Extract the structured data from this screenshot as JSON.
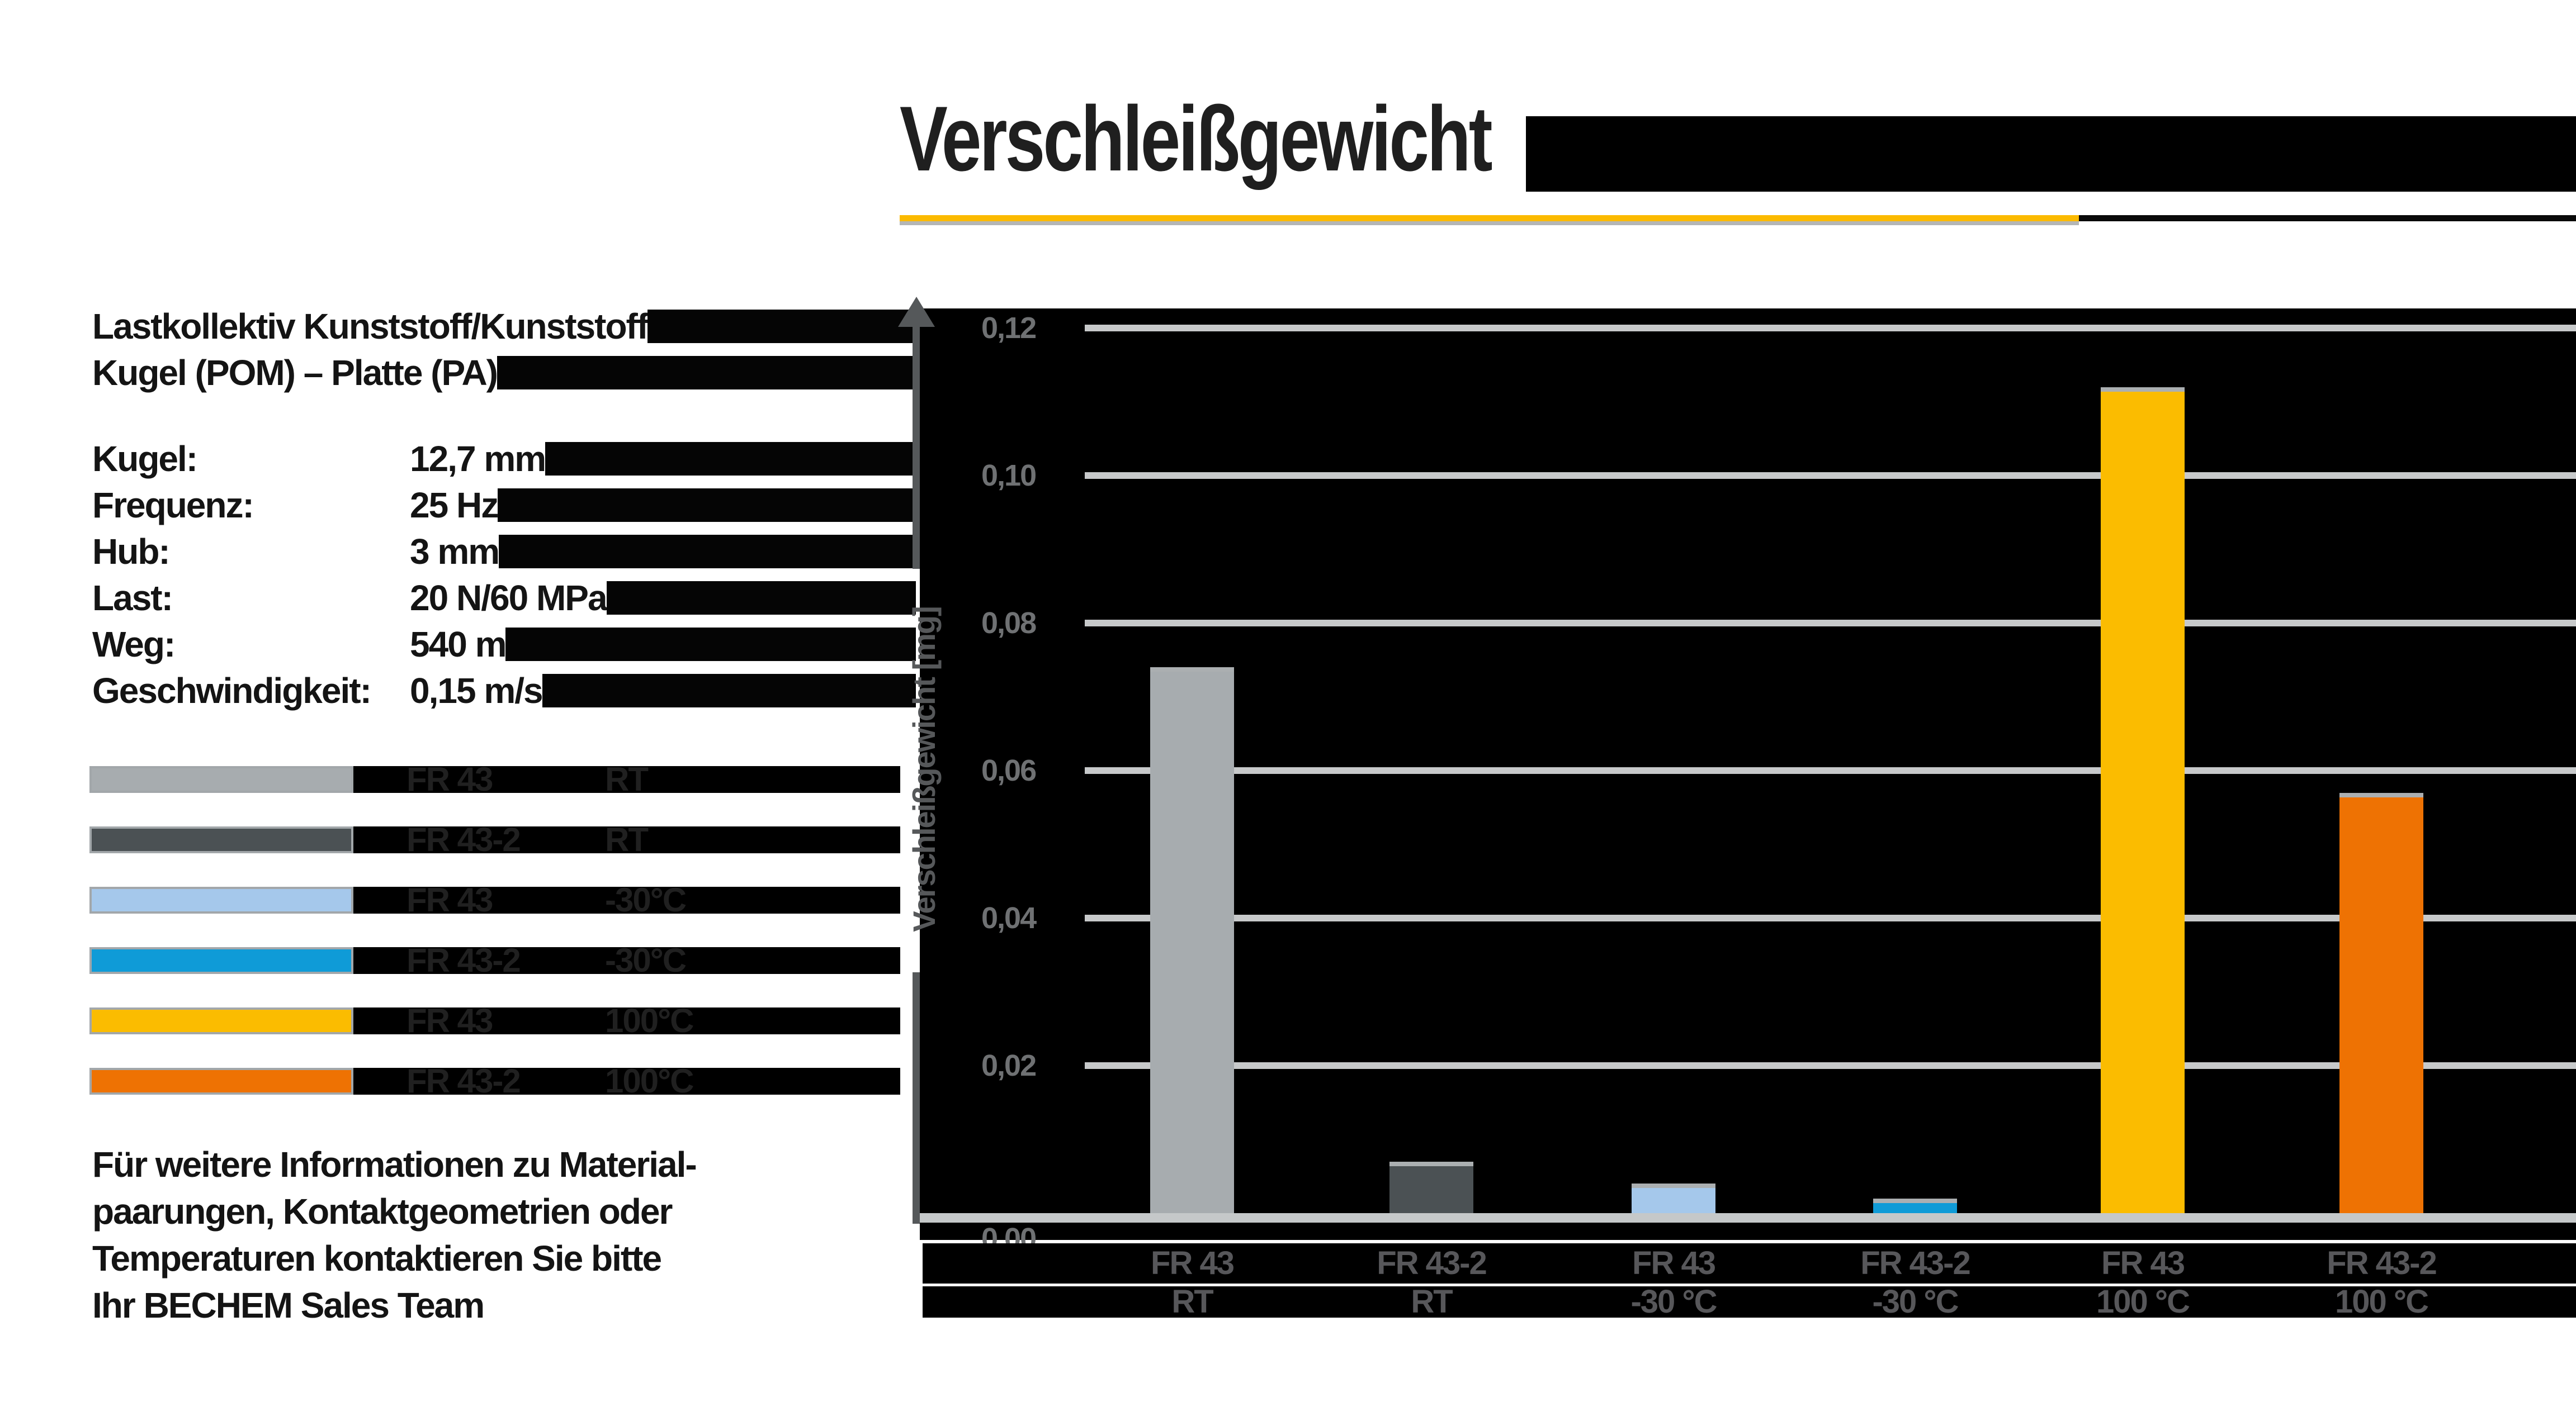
{
  "title": "Verschleißgewicht",
  "info": {
    "heading": [
      "Lastkollektiv Kunststoff/Kunststoff",
      "Kugel (POM) – Platte (PA)"
    ],
    "params": [
      {
        "label": "Kugel:",
        "value": "12,7 mm"
      },
      {
        "label": "Frequenz:",
        "value": "25 Hz"
      },
      {
        "label": "Hub:",
        "value": "3 mm"
      },
      {
        "label": "Last:",
        "value": "20 N/60 MPa"
      },
      {
        "label": "Weg:",
        "value": "540 m"
      },
      {
        "label": "Geschwindigkeit:",
        "value": "0,15 m/s"
      }
    ],
    "footer": [
      "Für weitere Informationen zu Material-",
      "paarungen, Kontaktgeometrien oder",
      "Temperaturen kontaktieren Sie bitte",
      "Ihr BECHEM Sales Team"
    ]
  },
  "legend": [
    {
      "product": "FR 43",
      "temperature": "RT",
      "color": "#a7acaf"
    },
    {
      "product": "FR 43-2",
      "temperature": "RT",
      "color": "#4b5154"
    },
    {
      "product": "FR 43",
      "temperature": "-30°C",
      "color": "#a5c8eb"
    },
    {
      "product": "FR 43-2",
      "temperature": "-30°C",
      "color": "#0f9bd7"
    },
    {
      "product": "FR 43",
      "temperature": "100°C",
      "color": "#fbbc00"
    },
    {
      "product": "FR 43-2",
      "temperature": "100°C",
      "color": "#ee7203"
    }
  ],
  "chart_data": {
    "type": "bar",
    "title": "Verschleißgewicht",
    "xlabel": "",
    "ylabel": "Verschleißgewicht [mg]",
    "ylim": [
      0,
      0.12
    ],
    "ytick_labels": [
      "0,12",
      "0,10",
      "0,08",
      "0,06",
      "0,04",
      "0,02",
      "0,00"
    ],
    "ytick_values": [
      0.12,
      0.1,
      0.08,
      0.06,
      0.04,
      0.02,
      0.0
    ],
    "grid": true,
    "legend_position": "left",
    "plot_background": "#000000",
    "categories": [
      {
        "product": "FR 43",
        "temperature": "RT"
      },
      {
        "product": "FR 43-2",
        "temperature": "RT"
      },
      {
        "product": "FR 43",
        "temperature": "-30 °C"
      },
      {
        "product": "FR 43-2",
        "temperature": "-30 °C"
      },
      {
        "product": "FR 43",
        "temperature": "100 °C"
      },
      {
        "product": "FR 43-2",
        "temperature": "100 °C"
      }
    ],
    "values": [
      0.074,
      0.007,
      0.004,
      0.002,
      0.112,
      0.057
    ],
    "bar_colors": [
      "#a7acaf",
      "#4b5154",
      "#a5c8eb",
      "#0f9bd7",
      "#fbbc00",
      "#ee7203"
    ]
  },
  "colors": {
    "accent_yellow": "#fbba00",
    "underline_gray": "#b4b6b6",
    "underline_black": "#0a0a0a",
    "plot_background": "#000000",
    "gridline": "#c7c9ca",
    "baseline": "#c5c8c9",
    "axis_gray": "#55585a",
    "tick_label_gray": "#6f7173",
    "category_label_gray": "#57575a",
    "bar_cap_gray": "#abafb1",
    "text_dark": "#141414"
  }
}
